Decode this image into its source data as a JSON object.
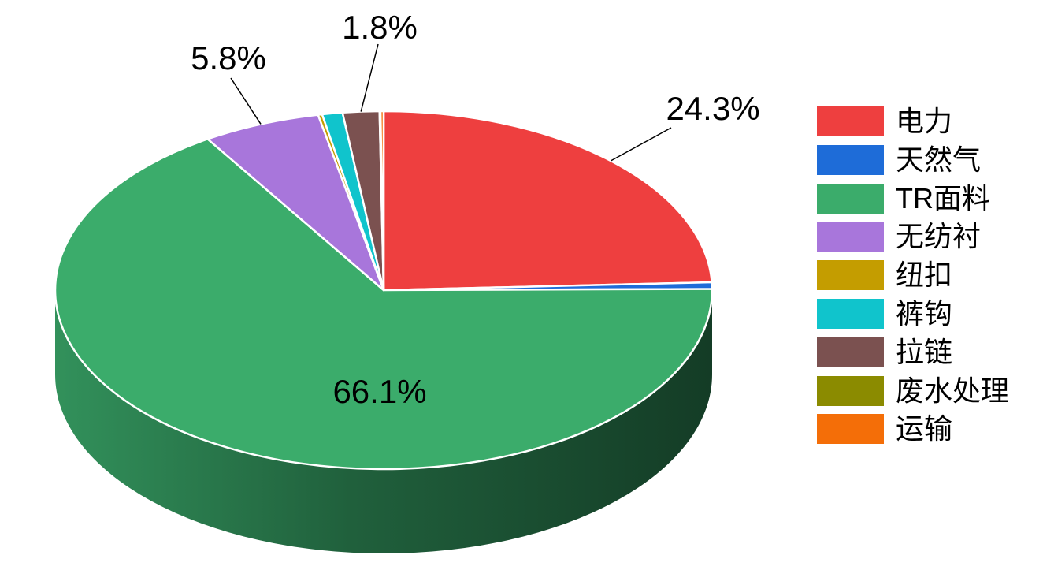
{
  "chart_data": {
    "type": "pie",
    "style": "3d",
    "title": "",
    "legend_position": "right",
    "background": "#ffffff",
    "labeled_values": {
      "电力": 24.3,
      "TR面料": 66.1,
      "无纺衬": 5.8,
      "拉链": 1.8
    },
    "slices": [
      {
        "label": "电力",
        "value": 24.3,
        "data_label": "24.3%",
        "color": "#EE3F3F"
      },
      {
        "label": "天然气",
        "value": 0.6,
        "data_label": "",
        "color": "#1E6CD8"
      },
      {
        "label": "TR面料",
        "value": 66.1,
        "data_label": "66.1%",
        "color": "#3BAC6B"
      },
      {
        "label": "无纺衬",
        "value": 5.8,
        "data_label": "5.8%",
        "color": "#A876DB"
      },
      {
        "label": "纽扣",
        "value": 0.2,
        "data_label": "",
        "color": "#C49D00"
      },
      {
        "label": "裤钩",
        "value": 1.0,
        "data_label": "",
        "color": "#10C4CC"
      },
      {
        "label": "拉链",
        "value": 1.8,
        "data_label": "1.8%",
        "color": "#7B5150"
      },
      {
        "label": "废水处理",
        "value": 0.05,
        "data_label": "",
        "color": "#8B8B00"
      },
      {
        "label": "运输",
        "value": 0.15,
        "data_label": "",
        "color": "#F46E08"
      }
    ],
    "side_shading": {
      "left": "#32915B",
      "mid": "#20603C",
      "right": "#143C26"
    },
    "slice_border_color": "#FFFFFF",
    "leader_line_color": "#000000"
  }
}
